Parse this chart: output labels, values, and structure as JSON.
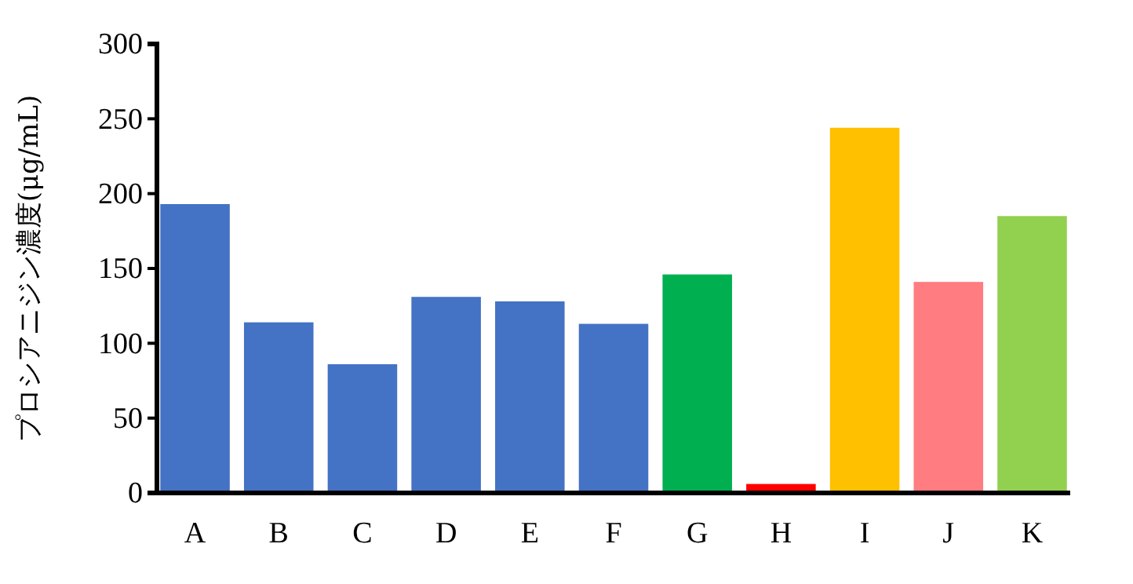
{
  "chart_data": {
    "type": "bar",
    "ylabel": "プロシアニジン濃度(μg/mL)",
    "categories": [
      "A",
      "B",
      "C",
      "D",
      "E",
      "F",
      "G",
      "H",
      "I",
      "J",
      "K"
    ],
    "values": [
      193,
      114,
      86,
      131,
      128,
      113,
      146,
      6,
      244,
      141,
      185
    ],
    "colors": [
      "#4472c4",
      "#4472c4",
      "#4472c4",
      "#4472c4",
      "#4472c4",
      "#4472c4",
      "#00b050",
      "#ff0000",
      "#ffc000",
      "#ff7c80",
      "#92d050"
    ],
    "ylim": [
      0,
      300
    ],
    "yticks": [
      0,
      50,
      100,
      150,
      200,
      250,
      300
    ],
    "grid": false
  }
}
